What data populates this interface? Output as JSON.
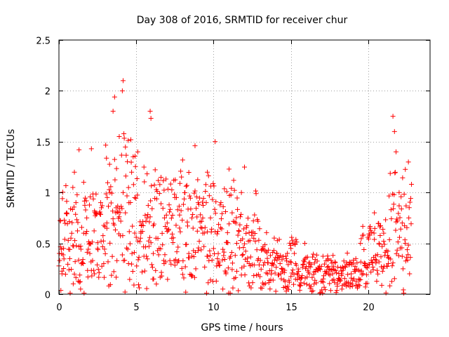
{
  "chart_data": {
    "type": "scatter",
    "title": "Day 308 of 2016, SRMTID for receiver chur",
    "xlabel": "GPS time / hours",
    "ylabel": "SRMTID / TECUs",
    "xlim": [
      0,
      24
    ],
    "ylim": [
      0,
      2.5
    ],
    "xticks": [
      0,
      5,
      10,
      15,
      20
    ],
    "xtick_labels": [
      "0",
      "5",
      "10",
      "15",
      "20"
    ],
    "yticks": [
      0,
      0.5,
      1,
      1.5,
      2,
      2.5
    ],
    "ytick_labels": [
      "0",
      "0.5",
      "1",
      "1.5",
      "2",
      "2.5"
    ],
    "grid": true,
    "marker": "+",
    "color": "#ff0000",
    "data_x_range_hours": [
      0,
      22.8
    ],
    "series": [
      {
        "name": "SRMTID",
        "sample_points": [
          [
            0.1,
            0.72
          ],
          [
            0.2,
            0.2
          ],
          [
            0.3,
            0.45
          ],
          [
            0.5,
            0.8
          ],
          [
            0.7,
            0.35
          ],
          [
            0.9,
            1.05
          ],
          [
            1.0,
            1.2
          ],
          [
            1.1,
            0.9
          ],
          [
            1.3,
            1.42
          ],
          [
            1.4,
            0.05
          ],
          [
            1.6,
            0.6
          ],
          [
            1.8,
            0.75
          ],
          [
            2.0,
            0.5
          ],
          [
            2.1,
            1.43
          ],
          [
            2.3,
            0.2
          ],
          [
            2.5,
            0.45
          ],
          [
            2.7,
            0.9
          ],
          [
            2.9,
            0.3
          ],
          [
            3.1,
            0.7
          ],
          [
            3.3,
            1.0
          ],
          [
            3.5,
            1.8
          ],
          [
            3.6,
            1.94
          ],
          [
            3.7,
            0.85
          ],
          [
            3.9,
            1.55
          ],
          [
            4.1,
            2.0
          ],
          [
            4.15,
            2.1
          ],
          [
            4.3,
            0.8
          ],
          [
            4.5,
            0.3
          ],
          [
            4.7,
            1.2
          ],
          [
            4.9,
            0.95
          ],
          [
            5.1,
            1.4
          ],
          [
            5.3,
            0.6
          ],
          [
            5.5,
            1.25
          ],
          [
            5.7,
            0.75
          ],
          [
            5.9,
            1.8
          ],
          [
            5.95,
            1.73
          ],
          [
            6.1,
            0.4
          ],
          [
            6.3,
            0.1
          ],
          [
            6.6,
            1.15
          ],
          [
            6.8,
            0.3
          ],
          [
            7.0,
            0.7
          ],
          [
            7.3,
            0.55
          ],
          [
            7.5,
            0.95
          ],
          [
            7.8,
            0.65
          ],
          [
            8.0,
            1.32
          ],
          [
            8.2,
            0.02
          ],
          [
            8.4,
            0.4
          ],
          [
            8.6,
            0.75
          ],
          [
            8.8,
            1.46
          ],
          [
            9.0,
            0.9
          ],
          [
            9.3,
            0.6
          ],
          [
            9.6,
            1.2
          ],
          [
            9.8,
            0.75
          ],
          [
            10.1,
            1.5
          ],
          [
            10.3,
            0.4
          ],
          [
            10.6,
            0.05
          ],
          [
            10.8,
            0.2
          ],
          [
            11.0,
            1.23
          ],
          [
            11.2,
            0.8
          ],
          [
            11.5,
            0.5
          ],
          [
            11.8,
            1.0
          ],
          [
            12.0,
            1.25
          ],
          [
            12.3,
            0.3
          ],
          [
            12.6,
            0.55
          ],
          [
            12.9,
            0.35
          ],
          [
            13.2,
            0.45
          ],
          [
            13.5,
            0.2
          ],
          [
            13.8,
            0.3
          ],
          [
            14.1,
            0.4
          ],
          [
            14.4,
            0.25
          ],
          [
            14.7,
            0.35
          ],
          [
            15.0,
            0.45
          ],
          [
            15.3,
            0.3
          ],
          [
            15.6,
            0.15
          ],
          [
            15.9,
            0.5
          ],
          [
            16.2,
            0.2
          ],
          [
            16.5,
            0.1
          ],
          [
            16.8,
            0.25
          ],
          [
            17.1,
            0.15
          ],
          [
            17.4,
            0.35
          ],
          [
            17.7,
            0.2
          ],
          [
            18.0,
            0.1
          ],
          [
            18.3,
            0.05
          ],
          [
            18.6,
            0.12
          ],
          [
            18.9,
            0.2
          ],
          [
            19.2,
            0.35
          ],
          [
            19.5,
            0.5
          ],
          [
            19.8,
            0.3
          ],
          [
            20.1,
            0.65
          ],
          [
            20.4,
            0.8
          ],
          [
            20.7,
            0.5
          ],
          [
            21.0,
            0.6
          ],
          [
            21.3,
            0.3
          ],
          [
            21.6,
            1.75
          ],
          [
            21.7,
            1.6
          ],
          [
            21.8,
            1.4
          ],
          [
            22.0,
            1.0
          ],
          [
            22.2,
            0.7
          ],
          [
            22.4,
            0.5
          ],
          [
            22.6,
            1.3
          ]
        ]
      }
    ]
  }
}
